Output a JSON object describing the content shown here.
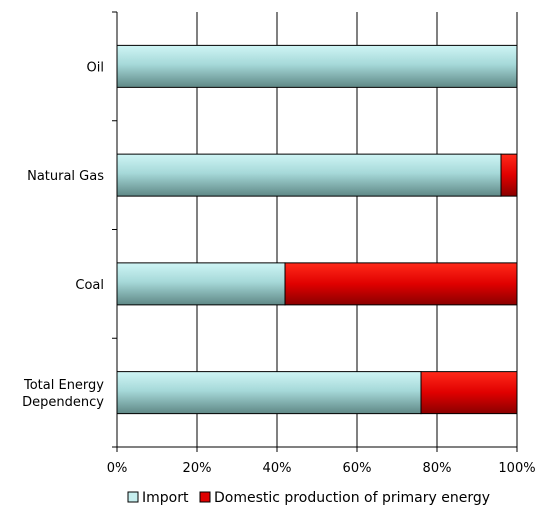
{
  "chart_data": {
    "type": "bar",
    "orientation": "horizontal",
    "stacked": true,
    "categories": [
      "Oil",
      "Natural Gas",
      "Coal",
      "Total Energy Dependency"
    ],
    "category_label_lines": [
      [
        "Oil"
      ],
      [
        "Natural Gas"
      ],
      [
        "Coal"
      ],
      [
        "Total Energy",
        "Dependency"
      ]
    ],
    "series": [
      {
        "name": "Import",
        "values": [
          100,
          96,
          42,
          76
        ],
        "color": "#9fd8da"
      },
      {
        "name": "Domestic production of primary energy",
        "values": [
          0,
          4,
          58,
          24
        ],
        "color": "#e00000"
      }
    ],
    "xlim": [
      0,
      100
    ],
    "xticks": [
      0,
      20,
      40,
      60,
      80,
      100
    ],
    "xtick_labels": [
      "0%",
      "20%",
      "40%",
      "60%",
      "80%",
      "100%"
    ],
    "grid": true,
    "legend": "bottom"
  }
}
